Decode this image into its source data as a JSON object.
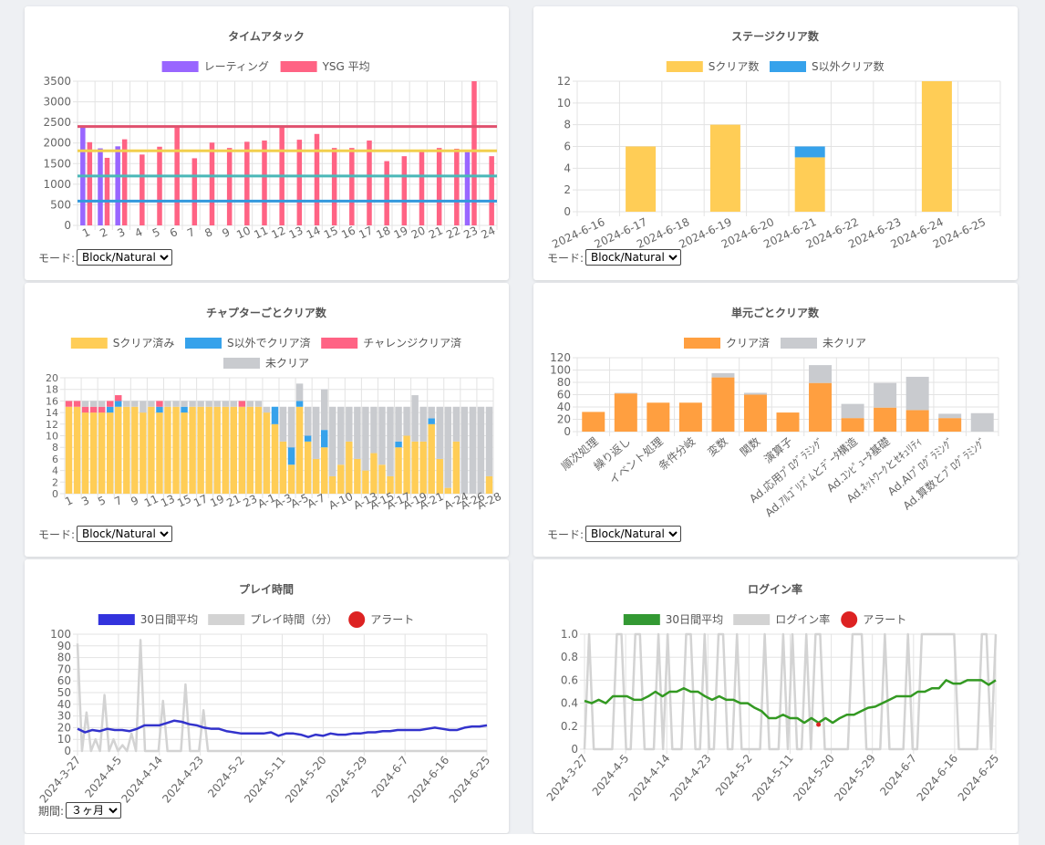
{
  "charts": {
    "time_attack": {
      "type": "bar",
      "title": "タイムアタック",
      "legend": [
        {
          "label": "レーティング",
          "color": "#9966ff"
        },
        {
          "label": "YSG 平均",
          "color": "#ff6384"
        }
      ],
      "categories": [
        "1",
        "2",
        "3",
        "4",
        "5",
        "6",
        "7",
        "8",
        "9",
        "10",
        "11",
        "12",
        "13",
        "14",
        "15",
        "16",
        "17",
        "18",
        "19",
        "20",
        "21",
        "22",
        "23",
        "24"
      ],
      "y_ticks": [
        "0",
        "500",
        "1000",
        "1500",
        "2000",
        "2500",
        "3000",
        "3500"
      ],
      "ylim": [
        0,
        3500
      ],
      "series": [
        {
          "name": "レーティング",
          "color": "#9966ff",
          "values": [
            2400,
            1870,
            1920,
            null,
            null,
            null,
            null,
            null,
            null,
            null,
            null,
            null,
            null,
            null,
            null,
            null,
            null,
            null,
            null,
            null,
            null,
            null,
            1780,
            null
          ]
        },
        {
          "name": "YSG 平均",
          "color": "#ff6384",
          "values": [
            2020,
            1640,
            2090,
            1720,
            1910,
            2370,
            1630,
            2010,
            1880,
            2030,
            2060,
            2400,
            2080,
            2220,
            1880,
            1880,
            2060,
            1560,
            1680,
            1840,
            1880,
            1860,
            3500,
            1680
          ]
        }
      ],
      "reference_lines": [
        {
          "value": 2400,
          "color": "#e0516e"
        },
        {
          "value": 1810,
          "color": "#f2cf4e"
        },
        {
          "value": 1200,
          "color": "#4ab8b8"
        },
        {
          "value": 590,
          "color": "#3399dd"
        }
      ],
      "mode_label": "モード:",
      "mode_value": "Block/Natural"
    },
    "stage_clear": {
      "type": "bar",
      "title": "ステージクリア数",
      "legend": [
        {
          "label": "Sクリア数",
          "color": "#ffcd56"
        },
        {
          "label": "S以外クリア数",
          "color": "#36a2eb"
        }
      ],
      "categories": [
        "2024-6-16",
        "2024-6-17",
        "2024-6-18",
        "2024-6-19",
        "2024-6-20",
        "2024-6-21",
        "2024-6-22",
        "2024-6-23",
        "2024-6-24",
        "2024-6-25"
      ],
      "y_ticks": [
        "0",
        "2",
        "4",
        "6",
        "8",
        "10",
        "12"
      ],
      "ylim": [
        0,
        12
      ],
      "series": [
        {
          "name": "Sクリア数",
          "color": "#ffcd56",
          "values": [
            0,
            6,
            0,
            8,
            0,
            5,
            0,
            0,
            12,
            0
          ]
        },
        {
          "name": "S以外クリア数",
          "color": "#36a2eb",
          "values": [
            0,
            0,
            0,
            0,
            0,
            1,
            0,
            0,
            0,
            0
          ]
        }
      ],
      "mode_label": "モード:",
      "mode_value": "Block/Natural"
    },
    "chapter_clear": {
      "type": "bar",
      "title": "チャプターごとクリア数",
      "legend": [
        {
          "label": "Sクリア済み",
          "color": "#ffcd56"
        },
        {
          "label": "S以外でクリア済",
          "color": "#36a2eb"
        },
        {
          "label": "チャレンジクリア済",
          "color": "#ff6384"
        },
        {
          "label": "未クリア",
          "color": "#c9cbcf"
        }
      ],
      "categories": [
        "1",
        "2",
        "3",
        "4",
        "5",
        "6",
        "7",
        "8",
        "9",
        "10",
        "11",
        "12",
        "13",
        "14",
        "15",
        "16",
        "17",
        "18",
        "19",
        "20",
        "21",
        "22",
        "23",
        "24",
        "A-1",
        "A-2",
        "A-3",
        "A-4",
        "A-5",
        "A-6",
        "A-7",
        "A-8",
        "A-9",
        "A-10",
        "A-11",
        "A-12",
        "A-13",
        "A-14",
        "A-15",
        "A-16",
        "A-17",
        "A-18",
        "A-19",
        "A-20",
        "A-21",
        "A-22",
        "A-23",
        "A-24",
        "A-25",
        "A-26",
        "A-27",
        "A-28"
      ],
      "tick_labels": [
        "1",
        "3",
        "5",
        "7",
        "9",
        "11",
        "13",
        "15",
        "17",
        "19",
        "21",
        "23",
        "A-1",
        "A-3",
        "A-5",
        "A-7",
        "A-10",
        "A-13",
        "A-15",
        "A-17",
        "A-19",
        "A-21",
        "A-24",
        "A-26",
        "A-28"
      ],
      "y_ticks": [
        "0",
        "2",
        "4",
        "6",
        "8",
        "10",
        "12",
        "14",
        "16",
        "18",
        "20"
      ],
      "ylim": [
        0,
        20
      ],
      "series": [
        {
          "name": "Sクリア済み",
          "color": "#ffcd56",
          "values": [
            15,
            15,
            14,
            14,
            14,
            14,
            15,
            15,
            15,
            14,
            15,
            14,
            15,
            15,
            14,
            15,
            15,
            15,
            15,
            15,
            15,
            15,
            15,
            15,
            14,
            12,
            9,
            5,
            15,
            9,
            6,
            8,
            3,
            5,
            9,
            6,
            4,
            7,
            5,
            3,
            8,
            10,
            9,
            9,
            12,
            6,
            1,
            9,
            0,
            0,
            0,
            3
          ]
        },
        {
          "name": "S以外でクリア済",
          "color": "#36a2eb",
          "values": [
            0,
            0,
            0,
            0,
            0,
            1,
            1,
            0,
            0,
            0,
            0,
            1,
            0,
            0,
            1,
            0,
            0,
            0,
            0,
            0,
            0,
            0,
            0,
            0,
            0,
            3,
            0,
            3,
            1,
            1,
            0,
            3,
            0,
            0,
            0,
            0,
            0,
            0,
            0,
            0,
            1,
            0,
            0,
            0,
            1,
            0,
            0,
            0,
            0,
            0,
            0,
            0
          ]
        },
        {
          "name": "チャレンジクリア済",
          "color": "#ff6384",
          "values": [
            1,
            1,
            1,
            1,
            1,
            1,
            1,
            0,
            0,
            0,
            0,
            1,
            0,
            0,
            0,
            0,
            0,
            0,
            0,
            0,
            0,
            1,
            0,
            0,
            0,
            0,
            0,
            0,
            0,
            0,
            0,
            0,
            0,
            0,
            0,
            0,
            0,
            0,
            0,
            0,
            0,
            0,
            0,
            0,
            0,
            0,
            0,
            0,
            0,
            0,
            0,
            0
          ]
        },
        {
          "name": "未クリア",
          "color": "#c9cbcf",
          "values": [
            0,
            0,
            1,
            1,
            1,
            0,
            0,
            1,
            1,
            2,
            1,
            0,
            1,
            1,
            1,
            1,
            1,
            1,
            1,
            1,
            1,
            0,
            1,
            1,
            1,
            0,
            6,
            7,
            3,
            5,
            9,
            7,
            12,
            10,
            6,
            9,
            11,
            8,
            10,
            12,
            6,
            5,
            8,
            6,
            2,
            9,
            14,
            6,
            15,
            15,
            15,
            12
          ]
        }
      ],
      "mode_label": "モード:",
      "mode_value": "Block/Natural"
    },
    "unit_clear": {
      "type": "bar",
      "title": "単元ごとクリア数",
      "legend": [
        {
          "label": "クリア済",
          "color": "#ff9f40"
        },
        {
          "label": "未クリア",
          "color": "#c9cbcf"
        }
      ],
      "categories": [
        "順次処理",
        "繰り返し",
        "イベント処理",
        "条件分岐",
        "変数",
        "関数",
        "演算子",
        "Ad.応用ﾌﾟﾛｸﾞﾗﾐﾝｸﾞ",
        "Ad.ｱﾙｺﾞﾘｽﾞﾑとﾃﾞｰﾀ構造",
        "Ad.ｺﾝﾋﾟｭｰﾀ基礎",
        "Ad.ﾈｯﾄﾜｰｸとｾｷｭﾘﾃｨ",
        "Ad.AIﾌﾟﾛｸﾞﾗﾐﾝｸﾞ",
        "Ad.算数とﾌﾟﾛｸﾞﾗﾐﾝｸﾞ"
      ],
      "y_ticks": [
        "0",
        "20",
        "40",
        "60",
        "80",
        "100",
        "120"
      ],
      "ylim": [
        0,
        120
      ],
      "series": [
        {
          "name": "クリア済",
          "color": "#ff9f40",
          "values": [
            32,
            62,
            47,
            47,
            88,
            60,
            31,
            79,
            22,
            39,
            35,
            22,
            0
          ]
        },
        {
          "name": "未クリア",
          "color": "#c9cbcf",
          "values": [
            0,
            1,
            0,
            0,
            7,
            3,
            0,
            29,
            23,
            40,
            54,
            7,
            30
          ]
        }
      ],
      "mode_label": "モード:",
      "mode_value": "Block/Natural"
    },
    "play_time": {
      "type": "line",
      "title": "プレイ時間",
      "legend": [
        {
          "label": "30日間平均",
          "color": "#3333dd",
          "kind": "box"
        },
        {
          "label": "プレイ時間（分）",
          "color": "#d3d3d3",
          "kind": "box"
        },
        {
          "label": "アラート",
          "color": "#dd2222",
          "kind": "circle"
        }
      ],
      "x_labels": [
        "2024-3-27",
        "2024-4-5",
        "2024-4-14",
        "2024-4-23",
        "2024-5-2",
        "2024-5-11",
        "2024-5-20",
        "2024-5-29",
        "2024-6-7",
        "2024-6-16",
        "2024-6-25"
      ],
      "y_ticks": [
        "0",
        "10",
        "20",
        "30",
        "40",
        "50",
        "60",
        "70",
        "80",
        "90",
        "100"
      ],
      "ylim": [
        0,
        100
      ],
      "series": [
        {
          "name": "30日間平均",
          "color": "#3333cc",
          "values": [
            19,
            16,
            18,
            17,
            19,
            18,
            18,
            17,
            19,
            22,
            22,
            22,
            24,
            26,
            25,
            23,
            22,
            20,
            19,
            19,
            17,
            16,
            15,
            15,
            15,
            15,
            16,
            13,
            15,
            15,
            14,
            12,
            14,
            13,
            15,
            14,
            14,
            15,
            15,
            16,
            16,
            17,
            17,
            18,
            18,
            18,
            18,
            19,
            20,
            19,
            18,
            18,
            20,
            21,
            21,
            22
          ]
        },
        {
          "name": "プレイ時間（分）",
          "color": "#d3d3d3",
          "values": [
            92,
            0,
            33,
            0,
            10,
            0,
            48,
            0,
            10,
            0,
            5,
            0,
            15,
            0,
            95,
            0,
            0,
            0,
            0,
            43,
            0,
            0,
            0,
            0,
            57,
            0,
            0,
            0,
            35,
            0,
            0,
            0,
            0,
            0,
            0,
            0,
            0,
            0,
            0,
            0,
            0,
            0,
            0,
            0,
            0,
            0,
            0,
            0,
            0,
            0,
            0,
            0,
            0,
            0,
            0,
            0,
            0,
            0,
            0,
            0,
            0,
            0,
            0,
            0,
            0,
            0,
            0,
            0,
            0,
            0,
            0,
            0,
            0,
            0,
            0,
            0,
            0,
            0,
            0,
            0,
            0,
            0,
            0,
            0,
            0,
            0,
            0,
            0,
            0,
            0,
            0,
            0
          ]
        }
      ],
      "period_label": "期間:",
      "period_value": "３ヶ月"
    },
    "login_rate": {
      "type": "line",
      "title": "ログイン率",
      "legend": [
        {
          "label": "30日間平均",
          "color": "#339933",
          "kind": "box"
        },
        {
          "label": "ログイン率",
          "color": "#d3d3d3",
          "kind": "box"
        },
        {
          "label": "アラート",
          "color": "#dd2222",
          "kind": "circle"
        }
      ],
      "x_labels": [
        "2024-3-27",
        "2024-4-5",
        "2024-4-14",
        "2024-4-23",
        "2024-5-2",
        "2024-5-11",
        "2024-5-20",
        "2024-5-29",
        "2024-6-7",
        "2024-6-16",
        "2024-6-25"
      ],
      "y_ticks": [
        "0",
        "0.2",
        "0.4",
        "0.6",
        "0.8",
        "1.0"
      ],
      "ylim": [
        0,
        1
      ],
      "series": [
        {
          "name": "30日間平均",
          "color": "#339922",
          "values": [
            0.42,
            0.4,
            0.43,
            0.4,
            0.46,
            0.46,
            0.46,
            0.43,
            0.43,
            0.46,
            0.5,
            0.46,
            0.5,
            0.5,
            0.53,
            0.5,
            0.5,
            0.46,
            0.43,
            0.46,
            0.43,
            0.43,
            0.4,
            0.4,
            0.36,
            0.33,
            0.27,
            0.27,
            0.3,
            0.27,
            0.27,
            0.23,
            0.27,
            0.23,
            0.27,
            0.23,
            0.27,
            0.3,
            0.3,
            0.33,
            0.36,
            0.37,
            0.4,
            0.43,
            0.46,
            0.46,
            0.46,
            0.5,
            0.5,
            0.53,
            0.53,
            0.6,
            0.57,
            0.57,
            0.6,
            0.6,
            0.6,
            0.56,
            0.6
          ]
        },
        {
          "name": "ログイン率",
          "color": "#d3d3d3",
          "values": []
        }
      ],
      "period_label": "",
      "period_value": ""
    }
  }
}
